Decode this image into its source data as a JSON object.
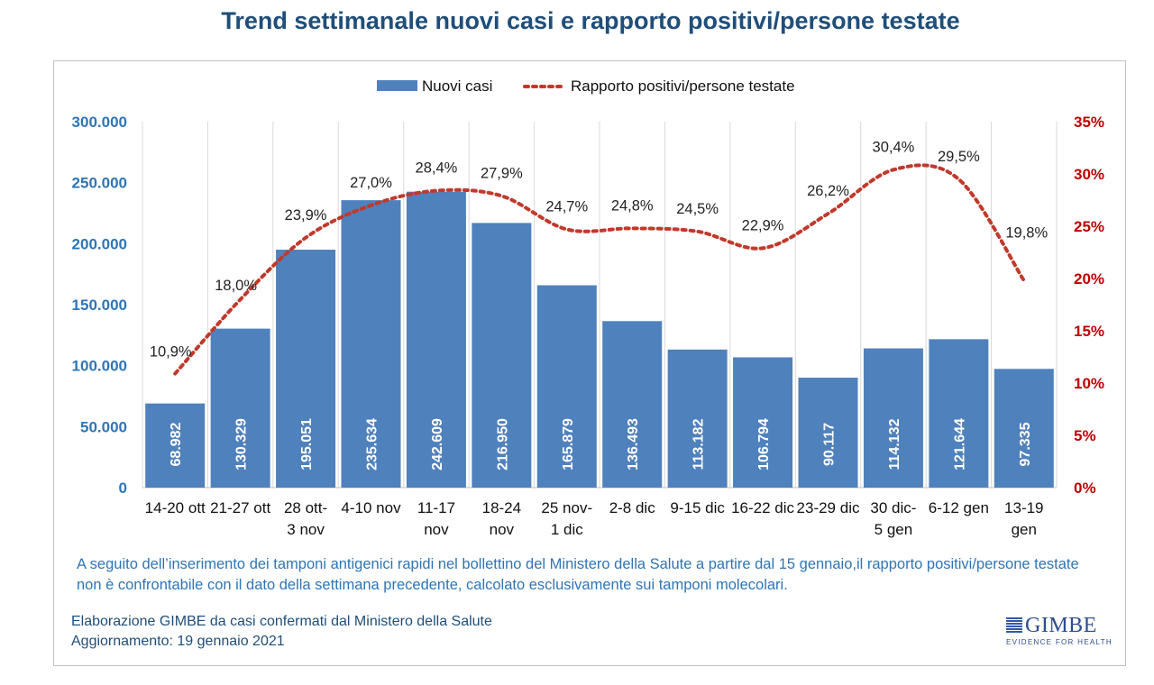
{
  "page": {
    "title": "Trend settimanale nuovi casi e rapporto positivi/persone testate",
    "note": "A seguito dell’inserimento dei tamponi antigenici rapidi nel bollettino del Ministero della Salute a partire dal 15 gennaio,il rapporto positivi/persone testate non è confrontabile con il dato della settimana precedente, calcolato esclusivamente sui tamponi molecolari.",
    "credit_line1": "Elaborazione GIMBE da casi confermati dal Ministero della Salute",
    "credit_line2": "Aggiornamento: 19 gennaio 2021",
    "logo_name": "GIMBE",
    "logo_tagline": "EVIDENCE FOR HEALTH"
  },
  "chart_data": {
    "type": "bar",
    "title": "Trend settimanale nuovi casi e rapporto positivi/persone testate",
    "categories": [
      [
        "14-20 ott"
      ],
      [
        "21-27 ott"
      ],
      [
        "28 ott-",
        "3 nov"
      ],
      [
        "4-10 nov"
      ],
      [
        "11-17",
        "nov"
      ],
      [
        "18-24",
        "nov"
      ],
      [
        "25 nov-",
        "1 dic"
      ],
      [
        "2-8 dic"
      ],
      [
        "9-15 dic"
      ],
      [
        "16-22 dic"
      ],
      [
        "23-29 dic"
      ],
      [
        "30 dic-",
        "5 gen"
      ],
      [
        "6-12 gen"
      ],
      [
        "13-19",
        "gen"
      ]
    ],
    "series": [
      {
        "name": "Nuovi casi",
        "type": "bar",
        "axis": "left",
        "color": "#4f81bd",
        "values": [
          68982,
          130329,
          195051,
          235634,
          242609,
          216950,
          165879,
          136493,
          113182,
          106794,
          90117,
          114132,
          121644,
          97335
        ],
        "labels": [
          "68.982",
          "130.329",
          "195.051",
          "235.634",
          "242.609",
          "216.950",
          "165.879",
          "136.493",
          "113.182",
          "106.794",
          "90.117",
          "114.132",
          "121.644",
          "97.335"
        ]
      },
      {
        "name": "Rapporto positivi/persone testate",
        "type": "line",
        "style": "dotted",
        "axis": "right",
        "color": "#c0392b",
        "values": [
          10.9,
          18.0,
          23.9,
          27.0,
          28.4,
          27.9,
          24.7,
          24.8,
          24.5,
          22.9,
          26.2,
          30.4,
          29.5,
          19.8
        ],
        "labels": [
          "10,9%",
          "18,0%",
          "23,9%",
          "27,0%",
          "28,4%",
          "27,9%",
          "24,7%",
          "24,8%",
          "24,5%",
          "22,9%",
          "26,2%",
          "30,4%",
          "29,5%",
          "19,8%"
        ]
      }
    ],
    "y_left": {
      "range": [
        0,
        300000
      ],
      "ticks": [
        0,
        50000,
        100000,
        150000,
        200000,
        250000,
        300000
      ],
      "tick_labels": [
        "0",
        "50.000",
        "100.000",
        "150.000",
        "200.000",
        "250.000",
        "300.000"
      ],
      "color": "#2e75b6"
    },
    "y_right": {
      "range": [
        0,
        35
      ],
      "ticks": [
        0,
        5,
        10,
        15,
        20,
        25,
        30,
        35
      ],
      "tick_labels": [
        "0%",
        "5%",
        "10%",
        "15%",
        "20%",
        "25%",
        "30%",
        "35%"
      ],
      "color": "#c00000"
    },
    "legend": {
      "position": "top"
    },
    "grid": {
      "horizontal": false,
      "vertical_category_dividers": true
    }
  }
}
